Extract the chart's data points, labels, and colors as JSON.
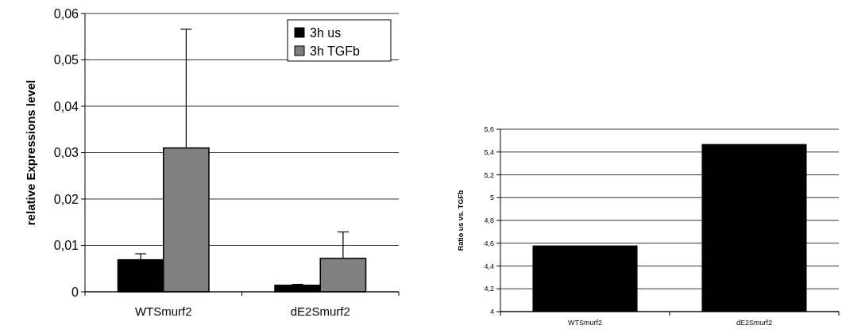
{
  "chart_data": [
    {
      "type": "bar",
      "ylabel": "relative Expressions level",
      "categories": [
        "WTSmurf2",
        "dE2Smurf2"
      ],
      "series": [
        {
          "name": "3h us",
          "color": "#000000",
          "values": [
            0.0069,
            0.0014
          ],
          "errors": [
            [
              0.0069,
              0.0082
            ],
            [
              0.0014,
              0.0016
            ]
          ]
        },
        {
          "name": "3h TGFb",
          "color": "#808080",
          "values": [
            0.031,
            0.0072
          ],
          "errors": [
            [
              0.031,
              0.0566
            ],
            [
              0.0072,
              0.0129
            ]
          ]
        }
      ],
      "ylim": [
        0,
        0.06
      ],
      "yticks": [
        0,
        {
          "value": 0.01,
          "label": "0,01"
        },
        {
          "value": 0.02,
          "label": "0,02"
        },
        {
          "value": 0.03,
          "label": "0,03"
        },
        {
          "value": 0.04,
          "label": "0,04"
        },
        {
          "value": 0.05,
          "label": "0,05"
        },
        {
          "value": 0.06,
          "label": "0,06"
        }
      ],
      "grid": "y",
      "legend": "top right"
    },
    {
      "type": "bar",
      "ylabel": "Ratio us vs. TGFb",
      "categories": [
        "WTSmurf2",
        "dE2Smurf2"
      ],
      "series": [
        {
          "color": "#000000",
          "values": [
            4.58,
            5.47
          ]
        }
      ],
      "ylim": [
        4,
        5.6
      ],
      "yticks": [
        4,
        {
          "value": 4.2,
          "label": "4,2"
        },
        {
          "value": 4.4,
          "label": "4,4"
        },
        {
          "value": 4.6,
          "label": "4,6"
        },
        {
          "value": 4.8,
          "label": "4,8"
        },
        5,
        {
          "value": 5.2,
          "label": "5,2"
        },
        {
          "value": 5.4,
          "label": "5,4"
        },
        {
          "value": 5.6,
          "label": "5,6"
        }
      ],
      "grid": "y"
    }
  ]
}
